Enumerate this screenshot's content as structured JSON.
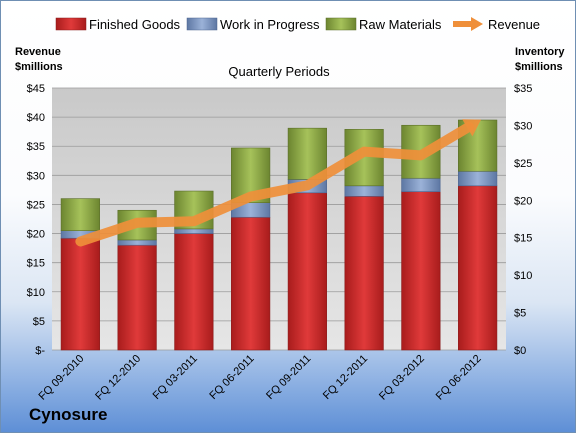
{
  "company": "Cynosure",
  "chart_data": {
    "type": "bar",
    "subtype": "stacked-bar-with-line",
    "title": "Quarterly Periods",
    "ylabel_left": "Revenue\n$millions",
    "ylabel_right": "Inventory\n$millions",
    "categories": [
      "FQ 09-2010",
      "FQ 12-2010",
      "FQ 03-2011",
      "FQ 06-2011",
      "FQ 09-2011",
      "FQ 12-2011",
      "FQ 03-2012",
      "FQ 06-2012"
    ],
    "left_axis": {
      "min": 0,
      "max": 45,
      "step": 5,
      "tick_labels": [
        "$-",
        "$5",
        "$10",
        "$15",
        "$20",
        "$25",
        "$30",
        "$35",
        "$40",
        "$45"
      ]
    },
    "right_axis": {
      "min": 0,
      "max": 35,
      "step": 5,
      "tick_labels": [
        "$0",
        "$5",
        "$10",
        "$15",
        "$20",
        "$25",
        "$30",
        "$35"
      ]
    },
    "bar_axis": "left",
    "line_axis": "right",
    "series": [
      {
        "name": "Finished Goods",
        "kind": "bar",
        "color": "#cc2a2a",
        "values": [
          19.2,
          18.0,
          20.0,
          22.8,
          27.0,
          26.4,
          27.2,
          28.2
        ]
      },
      {
        "name": "Work in Progress",
        "kind": "bar",
        "color": "#7d97c2",
        "values": [
          1.3,
          0.9,
          0.8,
          2.5,
          2.3,
          1.8,
          2.3,
          2.5
        ]
      },
      {
        "name": "Raw Materials",
        "kind": "bar",
        "color": "#8faa45",
        "values": [
          5.5,
          5.1,
          6.5,
          9.4,
          8.8,
          9.7,
          9.1,
          8.8
        ]
      },
      {
        "name": "Revenue",
        "kind": "line",
        "color": "#ef8f3a",
        "values": [
          14.5,
          17.0,
          17.2,
          20.5,
          22.0,
          26.5,
          26.0,
          30.5
        ]
      }
    ],
    "grid": true,
    "legend": "top"
  }
}
